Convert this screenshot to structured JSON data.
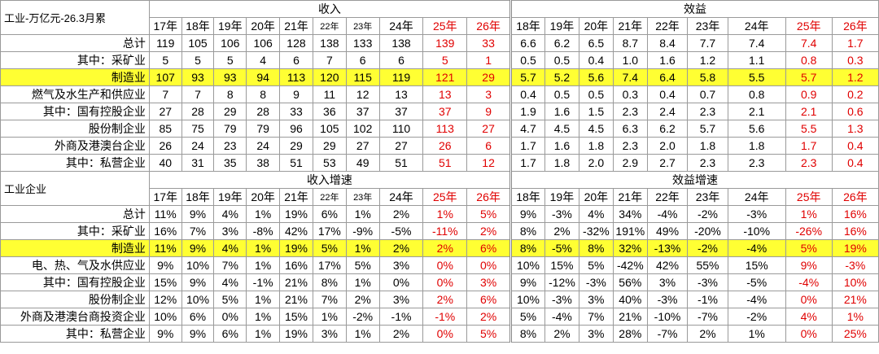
{
  "title1": "工业-万亿元-26.3月累",
  "title2": "工业企业",
  "sections": {
    "revenue": "收入",
    "profit": "效益",
    "revenue_growth": "收入增速",
    "profit_growth": "效益增速"
  },
  "years_top_left": [
    "17年",
    "18年",
    "19年",
    "20年",
    "21年",
    "22年",
    "23年",
    "24年",
    "25年",
    "26年"
  ],
  "years_top_right": [
    "18年",
    "19年",
    "20年",
    "21年",
    "22年",
    "23年",
    "24年",
    "25年",
    "26年"
  ],
  "years_bottom_left": [
    "17年",
    "18年",
    "19年",
    "20年",
    "21年",
    "22年",
    "23年",
    "24年",
    "25年",
    "26年"
  ],
  "years_bottom_right": [
    "18年",
    "19年",
    "20年",
    "21年",
    "22年",
    "23年",
    "24年",
    "25年",
    "26年"
  ],
  "top_rows": [
    {
      "label": "总计",
      "rev": [
        "119",
        "105",
        "106",
        "106",
        "128",
        "138",
        "133",
        "138",
        "139",
        "33"
      ],
      "prof": [
        "6.6",
        "6.2",
        "6.5",
        "8.7",
        "8.4",
        "7.7",
        "7.4",
        "7.4",
        "1.7"
      ]
    },
    {
      "label": "其中：采矿业",
      "rev": [
        "5",
        "5",
        "5",
        "4",
        "6",
        "7",
        "6",
        "6",
        "5",
        "1"
      ],
      "prof": [
        "0.5",
        "0.5",
        "0.4",
        "1.0",
        "1.6",
        "1.2",
        "1.1",
        "0.8",
        "0.3"
      ]
    },
    {
      "label": "制造业",
      "rev": [
        "107",
        "93",
        "93",
        "94",
        "113",
        "120",
        "115",
        "119",
        "121",
        "29"
      ],
      "prof": [
        "5.7",
        "5.2",
        "5.6",
        "7.4",
        "6.4",
        "5.8",
        "5.5",
        "5.7",
        "1.2"
      ]
    },
    {
      "label": "燃气及水生产和供应业",
      "rev": [
        "7",
        "7",
        "8",
        "8",
        "9",
        "11",
        "12",
        "13",
        "13",
        "3"
      ],
      "prof": [
        "0.4",
        "0.5",
        "0.5",
        "0.3",
        "0.4",
        "0.7",
        "0.8",
        "0.9",
        "0.2"
      ]
    },
    {
      "label": "其中：国有控股企业",
      "rev": [
        "27",
        "28",
        "29",
        "28",
        "33",
        "36",
        "37",
        "37",
        "37",
        "9"
      ],
      "prof": [
        "1.9",
        "1.6",
        "1.5",
        "2.3",
        "2.4",
        "2.3",
        "2.1",
        "2.1",
        "0.6"
      ]
    },
    {
      "label": "股份制企业",
      "rev": [
        "85",
        "75",
        "79",
        "79",
        "96",
        "105",
        "102",
        "110",
        "113",
        "27"
      ],
      "prof": [
        "4.7",
        "4.5",
        "4.5",
        "6.3",
        "6.2",
        "5.7",
        "5.6",
        "5.5",
        "1.3"
      ]
    },
    {
      "label": "外商及港澳台企业",
      "rev": [
        "26",
        "24",
        "23",
        "24",
        "29",
        "29",
        "27",
        "27",
        "26",
        "6"
      ],
      "prof": [
        "1.7",
        "1.6",
        "1.8",
        "2.3",
        "2.0",
        "1.8",
        "1.8",
        "1.7",
        "0.4"
      ]
    },
    {
      "label": "其中：私营企业",
      "rev": [
        "40",
        "31",
        "35",
        "38",
        "51",
        "53",
        "49",
        "51",
        "51",
        "12"
      ],
      "prof": [
        "1.7",
        "1.8",
        "2.0",
        "2.9",
        "2.7",
        "2.3",
        "2.3",
        "2.3",
        "0.4"
      ]
    }
  ],
  "bottom_rows": [
    {
      "label": "总计",
      "rev": [
        "11%",
        "9%",
        "4%",
        "1%",
        "19%",
        "6%",
        "1%",
        "2%",
        "1%",
        "5%"
      ],
      "prof": [
        "9%",
        "-3%",
        "4%",
        "34%",
        "-4%",
        "-2%",
        "-3%",
        "1%",
        "16%"
      ]
    },
    {
      "label": "其中：采矿业",
      "rev": [
        "16%",
        "7%",
        "3%",
        "-8%",
        "42%",
        "17%",
        "-9%",
        "-5%",
        "-11%",
        "2%"
      ],
      "prof": [
        "8%",
        "2%",
        "-32%",
        "191%",
        "49%",
        "-20%",
        "-10%",
        "-26%",
        "16%"
      ]
    },
    {
      "label": "制造业",
      "rev": [
        "11%",
        "9%",
        "4%",
        "1%",
        "19%",
        "5%",
        "1%",
        "2%",
        "2%",
        "6%"
      ],
      "prof": [
        "8%",
        "-5%",
        "8%",
        "32%",
        "-13%",
        "-2%",
        "-4%",
        "5%",
        "19%"
      ]
    },
    {
      "label": "电、热、气及水供应业",
      "rev": [
        "9%",
        "10%",
        "7%",
        "1%",
        "16%",
        "17%",
        "5%",
        "3%",
        "0%",
        "0%"
      ],
      "prof": [
        "10%",
        "15%",
        "5%",
        "-42%",
        "42%",
        "55%",
        "15%",
        "9%",
        "-3%"
      ]
    },
    {
      "label": "其中：国有控股企业",
      "rev": [
        "15%",
        "9%",
        "4%",
        "-1%",
        "21%",
        "8%",
        "1%",
        "0%",
        "0%",
        "3%"
      ],
      "prof": [
        "9%",
        "-12%",
        "-3%",
        "56%",
        "3%",
        "-3%",
        "-5%",
        "-4%",
        "10%"
      ]
    },
    {
      "label": "股份制企业",
      "rev": [
        "12%",
        "10%",
        "5%",
        "1%",
        "21%",
        "7%",
        "2%",
        "3%",
        "2%",
        "6%"
      ],
      "prof": [
        "10%",
        "-3%",
        "3%",
        "40%",
        "-3%",
        "-1%",
        "-4%",
        "0%",
        "21%"
      ]
    },
    {
      "label": "外商及港澳台商投资企业",
      "rev": [
        "10%",
        "6%",
        "0%",
        "1%",
        "15%",
        "1%",
        "-2%",
        "-1%",
        "-1%",
        "2%"
      ],
      "prof": [
        "5%",
        "-4%",
        "7%",
        "21%",
        "-10%",
        "-7%",
        "-2%",
        "4%",
        "1%"
      ]
    },
    {
      "label": "其中：私营企业",
      "rev": [
        "9%",
        "9%",
        "6%",
        "1%",
        "19%",
        "3%",
        "1%",
        "2%",
        "0%",
        "5%"
      ],
      "prof": [
        "8%",
        "2%",
        "3%",
        "28%",
        "-7%",
        "2%",
        "1%",
        "0%",
        "25%"
      ]
    }
  ],
  "highlight_color": "#ffff33",
  "forecast_color": "#e00000"
}
